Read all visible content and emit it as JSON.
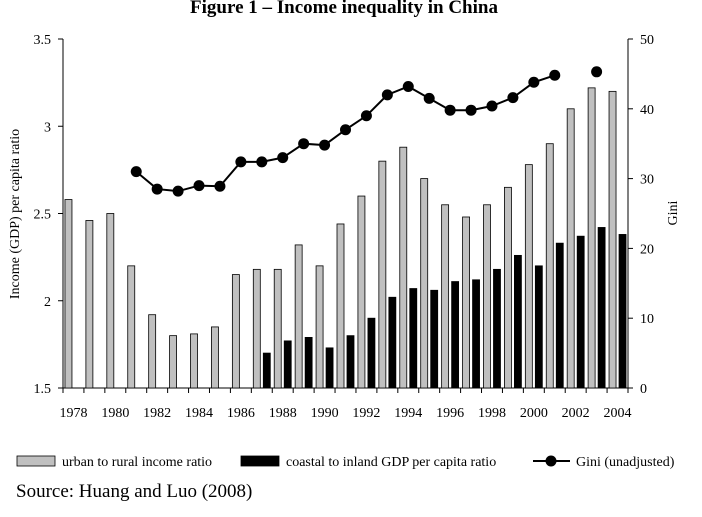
{
  "chart_data": {
    "type": "bar",
    "title": "Figure 1 – Income inequality in China",
    "source": "Source: Huang and Luo (2008)",
    "x": [
      1978,
      1979,
      1980,
      1981,
      1982,
      1983,
      1984,
      1985,
      1986,
      1987,
      1988,
      1989,
      1990,
      1991,
      1992,
      1993,
      1994,
      1995,
      1996,
      1997,
      1998,
      1999,
      2000,
      2001,
      2002,
      2003,
      2004
    ],
    "x_tick_labels": [
      "1978",
      "1980",
      "1982",
      "1984",
      "1986",
      "1988",
      "1990",
      "1992",
      "1994",
      "1996",
      "1998",
      "2000",
      "2002",
      "2004"
    ],
    "ylabel": "Income (GDP) per capita ratio",
    "ylim": [
      1.5,
      3.5
    ],
    "y_ticks": [
      "1.5",
      "2",
      "2.5",
      "3",
      "3.5"
    ],
    "y2label": "Gini",
    "y2lim": [
      0,
      50
    ],
    "y2_ticks": [
      "0",
      "10",
      "20",
      "30",
      "40",
      "50"
    ],
    "grid": false,
    "legend_position": "bottom",
    "series": [
      {
        "name": "urban to rural income ratio",
        "kind": "bar",
        "axis": "left",
        "color": "#c0c0c0",
        "values": [
          2.58,
          2.46,
          2.5,
          2.2,
          1.92,
          1.8,
          1.81,
          1.85,
          2.15,
          2.18,
          2.18,
          2.32,
          2.2,
          2.44,
          2.6,
          2.8,
          2.88,
          2.7,
          2.55,
          2.48,
          2.55,
          2.65,
          2.78,
          2.9,
          3.1,
          3.22,
          3.2
        ]
      },
      {
        "name": "coastal to inland GDP per capita ratio",
        "kind": "bar",
        "axis": "left",
        "color": "#000000",
        "values": [
          null,
          null,
          null,
          null,
          null,
          null,
          null,
          null,
          null,
          1.7,
          1.77,
          1.79,
          1.73,
          1.8,
          1.9,
          2.02,
          2.07,
          2.06,
          2.11,
          2.12,
          2.18,
          2.26,
          2.2,
          2.33,
          2.37,
          2.42,
          2.38
        ]
      },
      {
        "name": "Gini (unadjusted)",
        "kind": "line",
        "axis": "right",
        "color": "#000000",
        "values": [
          null,
          null,
          null,
          31.0,
          28.5,
          28.2,
          29.0,
          28.9,
          32.4,
          32.4,
          33.0,
          35.0,
          34.8,
          37.0,
          39.0,
          42.0,
          43.2,
          41.5,
          39.8,
          39.8,
          40.4,
          41.6,
          43.8,
          44.8,
          null,
          45.3,
          null
        ]
      }
    ]
  }
}
